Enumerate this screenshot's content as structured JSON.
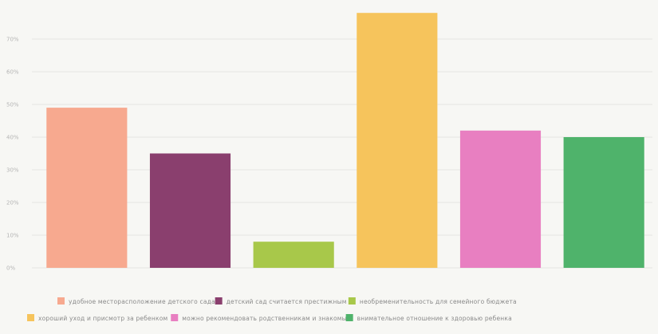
{
  "chart_data": {
    "type": "bar",
    "ylim": [
      0,
      80
    ],
    "yticks": [
      "0%",
      "10%",
      "20%",
      "30%",
      "40%",
      "50%",
      "60%",
      "70%"
    ],
    "grid": true,
    "legend_position": "bottom",
    "series": [
      {
        "name": "удобное месторасположение детского сада",
        "value": 49,
        "color": "#f7a98f"
      },
      {
        "name": "детский сад считается престижным",
        "value": 35,
        "color": "#8a3f6e"
      },
      {
        "name": "необременительность для семейного бюджета",
        "value": 8,
        "color": "#a8c84a"
      },
      {
        "name": "хороший уход и присмотр за ребенком",
        "value": 78,
        "color": "#f6c45c"
      },
      {
        "name": "можно рекомендовать родственникам и знакомым",
        "value": 42,
        "color": "#e87fc1"
      },
      {
        "name": "внимательное отношение к здоровью ребенка",
        "value": 40,
        "color": "#4fb36b"
      }
    ]
  }
}
